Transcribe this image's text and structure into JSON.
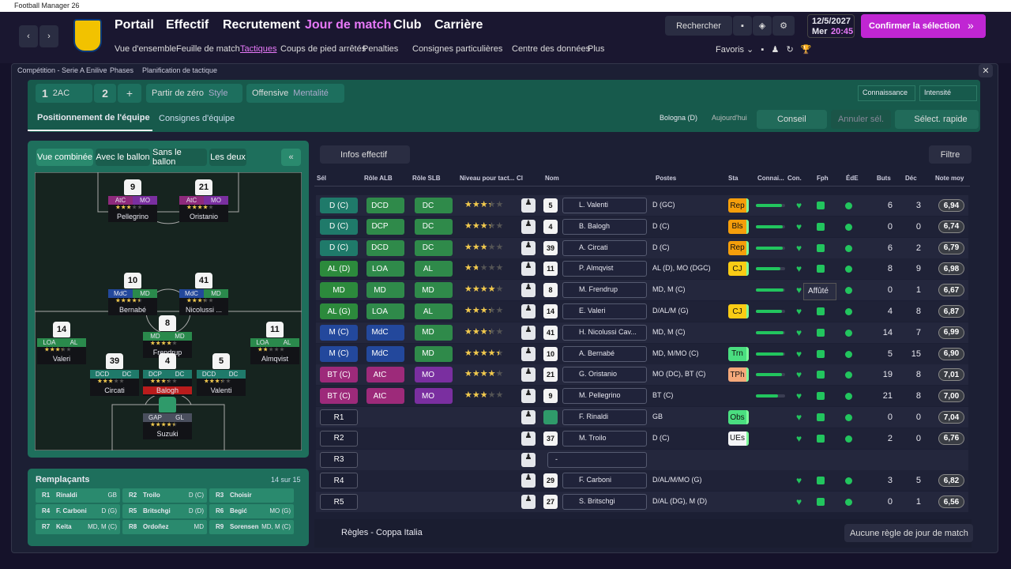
{
  "window_title": "Football Manager 26",
  "nav": [
    "Portail",
    "Effectif",
    "Recrutement",
    "Jour de match",
    "Club",
    "Carrière"
  ],
  "subnav": [
    "Vue d'ensemble",
    "Feuille de match",
    "Tactiques",
    "Coups de pied arrêtés",
    "Penalties",
    "Consignes particulières",
    "Centre des données",
    "Plus"
  ],
  "search": "Rechercher",
  "date": "12/5/2027",
  "weekday": "Mer",
  "time": "20:45",
  "confirm": "Confirmer la sélection",
  "favorites": "Favoris",
  "breadcrumb": [
    "Compétition - Serie A Enilive",
    "Phases",
    "Planification de tactique"
  ],
  "toolbar": {
    "tactic_num": "1",
    "formation": "2AC",
    "slot2": "2",
    "add": "+",
    "style_value": "Partir de zéro",
    "style_label": "Style",
    "mentality_value": "Offensive",
    "mentality_label": "Mentalité",
    "knowledge": "Connaissance",
    "intensity": "Intensité"
  },
  "tabs": [
    "Positionnement de l'équipe",
    "Consignes d'équipe"
  ],
  "opponent": "Bologna (D)",
  "opponent_date": "Aujourd'hui",
  "advice": "Conseil",
  "undo": "Annuler sél.",
  "quick": "Sélect. rapide",
  "pitch_tabs": [
    "Vue combinée",
    "Avec le ballon",
    "Sans le ballon",
    "Les deux"
  ],
  "pitch_players": [
    {
      "num": "9",
      "r1": "AtC",
      "r2": "MO",
      "stars": 2.5,
      "name": "Pellegrino",
      "c1": "#8e2a7c",
      "c2": "#7a2fa0"
    },
    {
      "num": "21",
      "r1": "AtC",
      "r2": "MO",
      "stars": 3.5,
      "name": "Oristanio",
      "c1": "#8e2a7c",
      "c2": "#7a2fa0"
    },
    {
      "num": "10",
      "r1": "MdC",
      "r2": "MD",
      "stars": 4,
      "name": "Bernabé",
      "c1": "#23489c",
      "c2": "#2a8a4c"
    },
    {
      "num": "41",
      "r1": "MdC",
      "r2": "MD",
      "stars": 3,
      "name": "Nicolussi ...",
      "c1": "#23489c",
      "c2": "#2a8a4c"
    },
    {
      "num": "8",
      "r1": "MD",
      "r2": "MD",
      "stars": 3.5,
      "name": "Frendrup",
      "c1": "#2a8a4c",
      "c2": "#2a8a4c"
    },
    {
      "num": "14",
      "r1": "LOA",
      "r2": "AL",
      "stars": 3,
      "name": "Valeri",
      "c1": "#2a8a4c",
      "c2": "#2a8a4c"
    },
    {
      "num": "11",
      "r1": "LOA",
      "r2": "AL",
      "stars": 1.5,
      "name": "Almqvist",
      "c1": "#2a8a4c",
      "c2": "#2a8a4c"
    },
    {
      "num": "39",
      "r1": "DCD",
      "r2": "DC",
      "stars": 2.5,
      "name": "Circati",
      "c1": "#1f7a6a",
      "c2": "#1f7a6a"
    },
    {
      "num": "4",
      "r1": "DCP",
      "r2": "DC",
      "stars": 3,
      "name": "Balogh",
      "c1": "#1f7a6a",
      "c2": "#1f7a6a"
    },
    {
      "num": "5",
      "r1": "DCD",
      "r2": "DC",
      "stars": 3,
      "name": "Valenti",
      "c1": "#1f7a6a",
      "c2": "#1f7a6a"
    },
    {
      "r1": "GAP",
      "r2": "GL",
      "stars": 4,
      "name": "Suzuki",
      "c1": "#4a4f5e",
      "c2": "#4a4f5e"
    }
  ],
  "subs": {
    "title": "Remplaçants",
    "count": "14 sur 15",
    "items": [
      {
        "code": "R1",
        "name": "Rinaldi",
        "pos": "GB"
      },
      {
        "code": "R2",
        "name": "Troilo",
        "pos": "D (C)"
      },
      {
        "code": "R3",
        "name": "Choisir"
      },
      {
        "code": "R4",
        "name": "F. Carboni",
        "pos": "D (G)"
      },
      {
        "code": "R5",
        "name": "Britschgi",
        "pos": "D (D)"
      },
      {
        "code": "R6",
        "name": "Begić",
        "pos": "MO (G)"
      },
      {
        "code": "R7",
        "name": "Keita",
        "pos": "MD, M (C)"
      },
      {
        "code": "R8",
        "name": "Ordoñez",
        "pos": "MD"
      },
      {
        "code": "R9",
        "name": "Sorensen",
        "pos": "MD, M (C)"
      }
    ]
  },
  "table": {
    "view": "Infos effectif",
    "filter": "Filtre",
    "columns": [
      "Sél",
      "Rôle ALB",
      "Rôle SLB",
      "Niveau pour tact...",
      "Cl",
      "Nom",
      "Postes",
      "Sta",
      "Connai...",
      "Con.",
      "Fph",
      "ÉdE",
      "Buts",
      "Déc",
      "Note moy"
    ],
    "rows": [
      {
        "sel": "D (C)",
        "alb": "DCD",
        "slb": "DC",
        "stars": 3,
        "num": "5",
        "name": "L. Valenti",
        "pos": "D (GC)",
        "sta": "Rep",
        "sta_color": "#f59e0b",
        "fam": 90,
        "goals": 6,
        "dec": 3,
        "note": "6,94",
        "colors": [
          "#1f7a6a",
          "#2f8a4a",
          "#2f8a4a"
        ]
      },
      {
        "sel": "D (C)",
        "alb": "DCP",
        "slb": "DC",
        "stars": 3,
        "num": "4",
        "name": "B. Balogh",
        "pos": "D (C)",
        "sta": "Bls",
        "sta_color": "#f59e0b",
        "fam": 92,
        "goals": 0,
        "dec": 0,
        "note": "6,74",
        "colors": [
          "#1f7a6a",
          "#2f8a4a",
          "#2f8a4a"
        ]
      },
      {
        "sel": "D (C)",
        "alb": "DCD",
        "slb": "DC",
        "stars": 2.5,
        "num": "39",
        "name": "A. Circati",
        "pos": "D (C)",
        "sta": "Rep",
        "sta_color": "#f59e0b",
        "fam": 92,
        "goals": 6,
        "dec": 2,
        "note": "6,79",
        "colors": [
          "#1f7a6a",
          "#2f8a4a",
          "#2f8a4a"
        ]
      },
      {
        "sel": "AL (D)",
        "alb": "LOA",
        "slb": "AL",
        "stars": 1.5,
        "num": "11",
        "name": "P. Almqvist",
        "pos": "AL (D), MO (DGC)",
        "sta": "CJ",
        "sta_color": "#facc15",
        "fam": 85,
        "goals": 8,
        "dec": 9,
        "note": "6,98",
        "colors": [
          "#2c8a3c",
          "#2f8a4a",
          "#2f8a4a"
        ]
      },
      {
        "sel": "MD",
        "alb": "MD",
        "slb": "MD",
        "stars": 3.5,
        "num": "8",
        "name": "M. Frendrup",
        "pos": "MD, M (C)",
        "fam": 95,
        "goals": 0,
        "dec": 1,
        "note": "6,67",
        "colors": [
          "#2c8a3c",
          "#2f8a4a",
          "#2f8a4a"
        ]
      },
      {
        "sel": "AL (G)",
        "alb": "LOA",
        "slb": "AL",
        "stars": 3,
        "num": "14",
        "name": "E. Valeri",
        "pos": "D/AL/M (G)",
        "sta": "CJ",
        "sta_color": "#facc15",
        "fam": 88,
        "goals": 4,
        "dec": 8,
        "note": "6,87",
        "colors": [
          "#2c8a3c",
          "#2f8a4a",
          "#2f8a4a"
        ]
      },
      {
        "sel": "M (C)",
        "alb": "MdC",
        "slb": "MD",
        "stars": 3,
        "num": "41",
        "name": "H. Nicolussi Cav...",
        "pos": "MD, M (C)",
        "fam": 95,
        "goals": 14,
        "dec": 7,
        "note": "6,99",
        "colors": [
          "#23489c",
          "#23489c",
          "#2f8a4a"
        ]
      },
      {
        "sel": "M (C)",
        "alb": "MdC",
        "slb": "MD",
        "stars": 4,
        "num": "10",
        "name": "A. Bernabé",
        "pos": "MD, M/MO (C)",
        "sta": "Trn",
        "sta_color": "#4ade80",
        "fam": 95,
        "goals": 5,
        "dec": 15,
        "note": "6,90",
        "colors": [
          "#23489c",
          "#23489c",
          "#2f8a4a"
        ]
      },
      {
        "sel": "BT (C)",
        "alb": "AtC",
        "slb": "MO",
        "stars": 3.5,
        "num": "21",
        "name": "G. Oristanio",
        "pos": "MO (DC), BT (C)",
        "sta": "TPh",
        "sta_color": "#f5a97a",
        "fam": 90,
        "goals": 19,
        "dec": 8,
        "note": "7,01",
        "colors": [
          "#9d2a7a",
          "#9d2a7a",
          "#7a2fa0"
        ]
      },
      {
        "sel": "BT (C)",
        "alb": "AtC",
        "slb": "MO",
        "stars": 2.5,
        "num": "9",
        "name": "M. Pellegrino",
        "pos": "BT (C)",
        "fam": 75,
        "goals": 21,
        "dec": 8,
        "note": "7,00",
        "colors": [
          "#9d2a7a",
          "#9d2a7a",
          "#7a2fa0"
        ]
      },
      {
        "sel": "R1",
        "name": "F. Rinaldi",
        "pos": "GB",
        "sta": "Obs",
        "sta_color": "#4ade80",
        "goals": 0,
        "dec": 0,
        "note": "7,04"
      },
      {
        "sel": "R2",
        "num": "37",
        "name": "M. Troilo",
        "pos": "D (C)",
        "sta": "UEs",
        "sta_color": "#f3f4f6",
        "goals": 2,
        "dec": 0,
        "note": "6,76"
      },
      {
        "sel": "R3",
        "name": "-"
      },
      {
        "sel": "R4",
        "num": "29",
        "name": "F. Carboni",
        "pos": "D/AL/M/MO (G)",
        "goals": 3,
        "dec": 5,
        "note": "6,82"
      },
      {
        "sel": "R5",
        "num": "27",
        "name": "S. Britschgi",
        "pos": "D/AL (DG), M (D)",
        "goals": 0,
        "dec": 1,
        "note": "6,56"
      }
    ]
  },
  "tooltip": "Affûté",
  "footer": {
    "rules": "Règles - Coppa Italia",
    "match_rules": "Aucune règle de jour de match"
  }
}
